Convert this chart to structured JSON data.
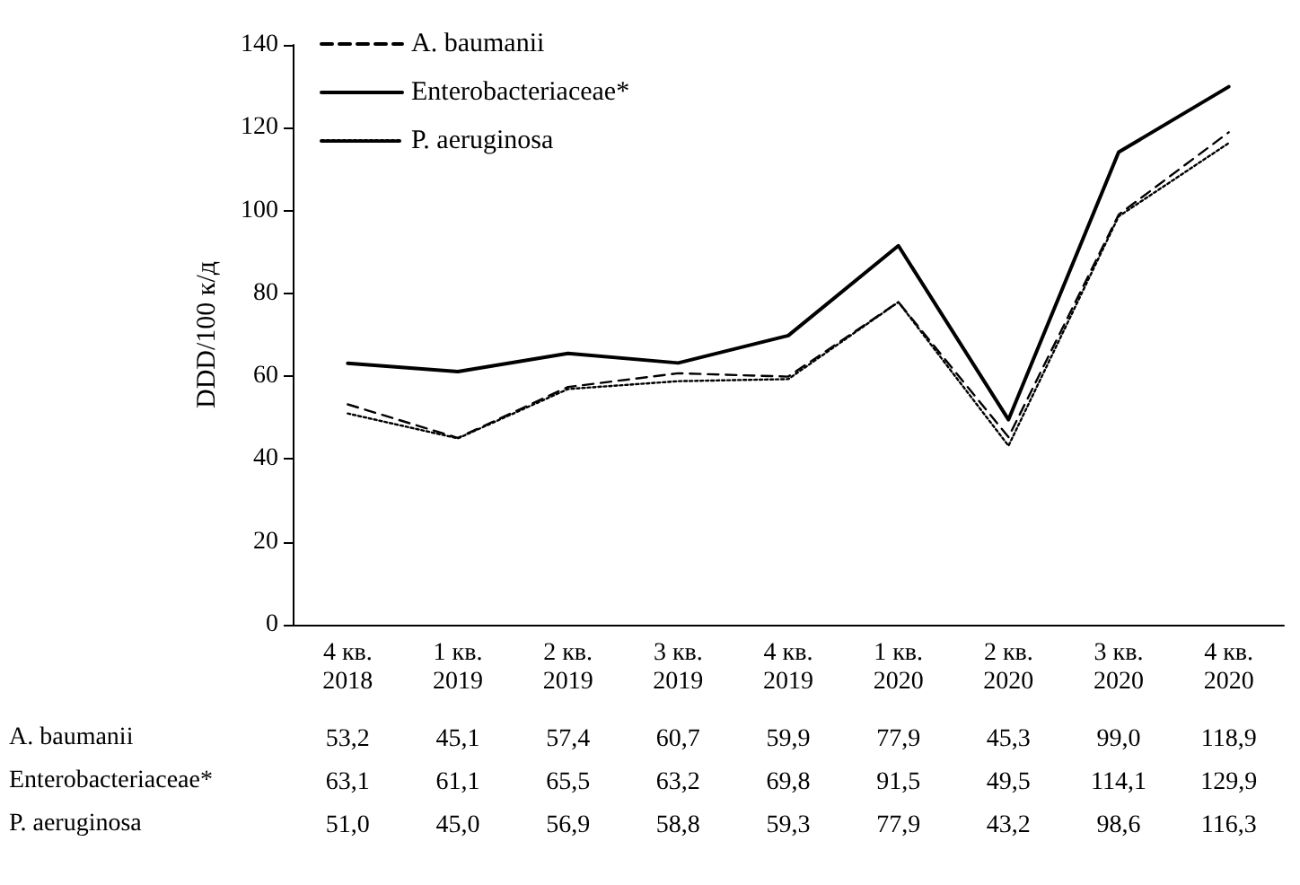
{
  "chart_data": {
    "type": "line",
    "ylabel": "DDD/100 к/д",
    "categories": [
      "4 кв.\n2018",
      "1 кв.\n2019",
      "2 кв.\n2019",
      "3 кв.\n2019",
      "4 кв.\n2019",
      "1 кв.\n2020",
      "2 кв.\n2020",
      "3 кв.\n2020",
      "4 кв.\n2020"
    ],
    "series": [
      {
        "name": "A. baumanii",
        "color": "#000000",
        "line_style": "dashed",
        "values": [
          53.2,
          45.1,
          57.4,
          60.7,
          59.9,
          77.9,
          45.3,
          99.0,
          118.9
        ],
        "value_labels": [
          "53,2",
          "45,1",
          "57,4",
          "60,7",
          "59,9",
          "77,9",
          "45,3",
          "99,0",
          "118,9"
        ]
      },
      {
        "name": "Enterobacteriaceae*",
        "color": "#000000",
        "line_style": "solid",
        "values": [
          63.1,
          61.1,
          65.5,
          63.2,
          69.8,
          91.5,
          49.5,
          114.1,
          129.9
        ],
        "value_labels": [
          "63,1",
          "61,1",
          "65,5",
          "63,2",
          "69,8",
          "91,5",
          "49,5",
          "114,1",
          "129,9"
        ]
      },
      {
        "name": "P. aeruginosa",
        "color": "#000000",
        "line_style": "dotted",
        "values": [
          51.0,
          45.0,
          56.9,
          58.8,
          59.3,
          77.9,
          43.2,
          98.6,
          116.3
        ],
        "value_labels": [
          "51,0",
          "45,0",
          "56,9",
          "58,8",
          "59,3",
          "77,9",
          "43,2",
          "98,6",
          "116,3"
        ]
      }
    ],
    "ylim": [
      0,
      140
    ],
    "yticks": [
      0,
      20,
      40,
      60,
      80,
      100,
      120,
      140
    ],
    "grid": false,
    "legend": "top left",
    "marker": "none"
  }
}
